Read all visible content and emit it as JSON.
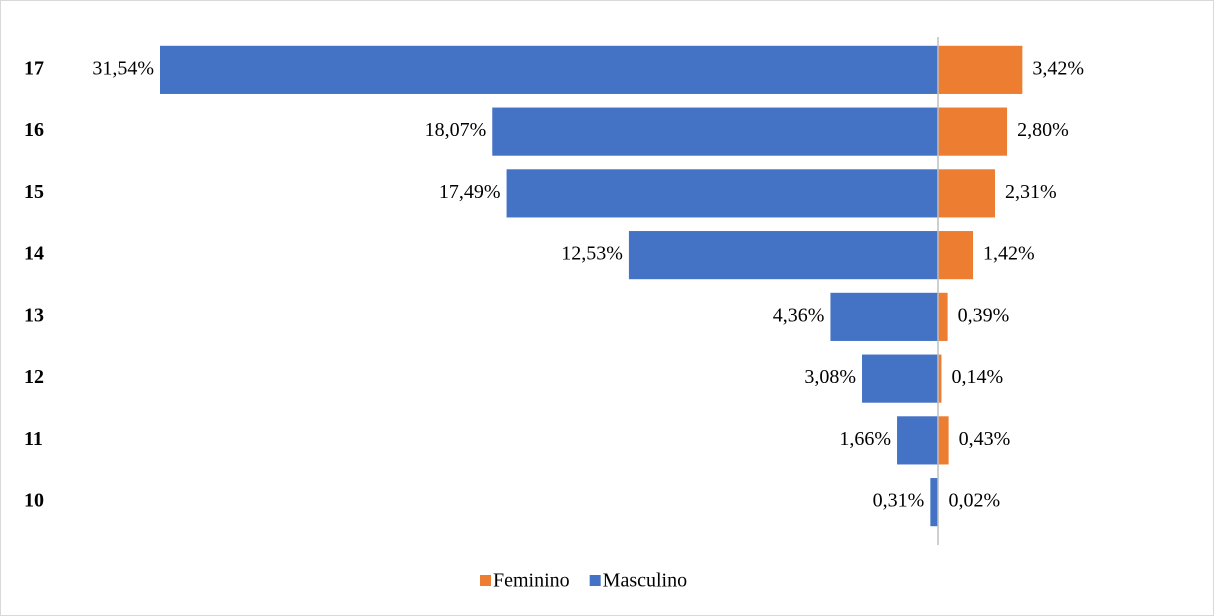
{
  "chart_data": {
    "type": "bar",
    "categories": [
      "17",
      "16",
      "15",
      "14",
      "13",
      "12",
      "11",
      "10"
    ],
    "series": [
      {
        "name": "Feminino",
        "color": "#ed7d31",
        "values": [
          3.42,
          2.8,
          2.31,
          1.42,
          0.39,
          0.14,
          0.43,
          0.02
        ],
        "value_labels": [
          "3,42%",
          "2,80%",
          "2,31%",
          "1,42%",
          "0,39%",
          "0,14%",
          "0,43%",
          "0,02%"
        ]
      },
      {
        "name": "Masculino",
        "color": "#4472c4",
        "values": [
          31.54,
          18.07,
          17.49,
          12.53,
          4.36,
          3.08,
          1.66,
          0.31
        ],
        "value_labels": [
          "31,54%",
          "18,07%",
          "17,49%",
          "12,53%",
          "4,36%",
          "3,08%",
          "1,66%",
          "0,31%"
        ]
      }
    ]
  }
}
